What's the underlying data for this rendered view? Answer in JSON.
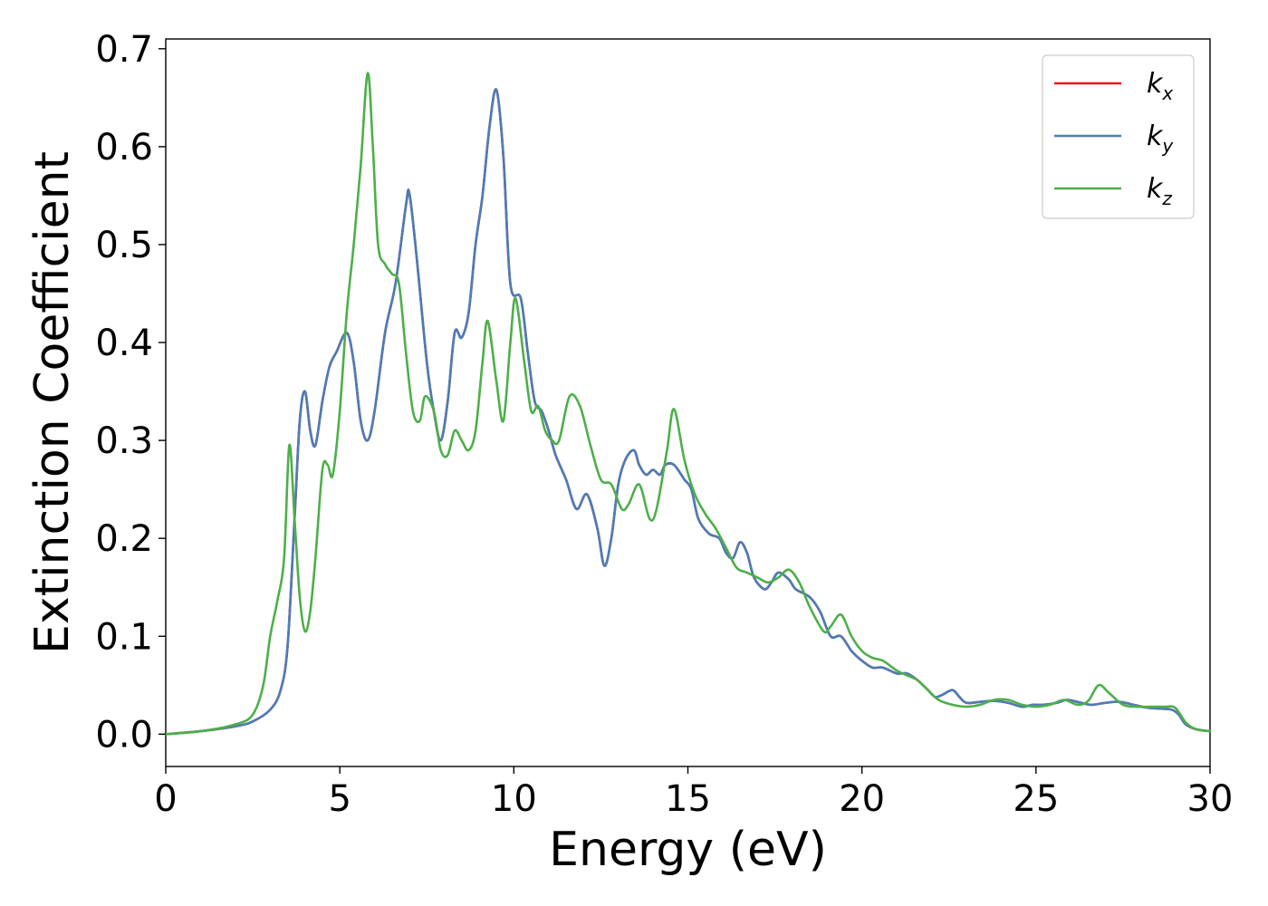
{
  "chart_data": {
    "type": "line",
    "title": "",
    "xlabel": "Energy (eV)",
    "ylabel": "Extinction Coefficient",
    "xlim": [
      0,
      30
    ],
    "ylim": [
      -0.033,
      0.71
    ],
    "xticks": [
      0,
      5,
      10,
      15,
      20,
      25,
      30
    ],
    "xtick_labels": [
      "0",
      "5",
      "10",
      "15",
      "20",
      "25",
      "30"
    ],
    "yticks": [
      0.0,
      0.1,
      0.2,
      0.3,
      0.4,
      0.5,
      0.6,
      0.7
    ],
    "ytick_labels": [
      "0.0",
      "0.1",
      "0.2",
      "0.3",
      "0.4",
      "0.5",
      "0.6",
      "0.7"
    ],
    "grid": false,
    "legend_position": "top-right",
    "series": [
      {
        "name": "k_x",
        "legend_base": "k",
        "legend_sub": "x",
        "color": "#e41a1c",
        "x": [
          0,
          1,
          2,
          2.5,
          3.0,
          3.3,
          3.5,
          3.7,
          3.85,
          4.0,
          4.15,
          4.3,
          4.5,
          4.7,
          4.9,
          5.2,
          5.4,
          5.6,
          5.8,
          6.0,
          6.3,
          6.6,
          6.9,
          7.0,
          7.2,
          7.5,
          7.7,
          7.9,
          8.1,
          8.3,
          8.5,
          8.7,
          8.9,
          9.1,
          9.3,
          9.5,
          9.7,
          9.9,
          10.2,
          10.4,
          10.6,
          10.8,
          11.0,
          11.2,
          11.5,
          11.8,
          12.1,
          12.4,
          12.6,
          12.8,
          13.0,
          13.2,
          13.45,
          13.6,
          13.8,
          14.0,
          14.2,
          14.35,
          14.6,
          14.9,
          15.1,
          15.3,
          15.6,
          15.9,
          16.1,
          16.3,
          16.5,
          16.7,
          16.9,
          17.2,
          17.4,
          17.6,
          17.9,
          18.1,
          18.5,
          18.8,
          19.1,
          19.4,
          19.7,
          20.0,
          20.3,
          20.6,
          21.0,
          21.3,
          21.6,
          21.9,
          22.1,
          22.3,
          22.6,
          22.8,
          23.0,
          23.4,
          23.8,
          24.2,
          24.6,
          24.9,
          25.2,
          25.6,
          25.9,
          26.3,
          26.6,
          27.0,
          27.4,
          27.8,
          28.2,
          28.6,
          28.9,
          29.1,
          29.3,
          29.6,
          30.0
        ],
        "y": [
          0.0,
          0.003,
          0.008,
          0.013,
          0.025,
          0.045,
          0.09,
          0.22,
          0.32,
          0.35,
          0.31,
          0.295,
          0.34,
          0.375,
          0.39,
          0.41,
          0.38,
          0.32,
          0.3,
          0.33,
          0.41,
          0.46,
          0.54,
          0.552,
          0.49,
          0.38,
          0.33,
          0.3,
          0.34,
          0.41,
          0.405,
          0.43,
          0.5,
          0.55,
          0.62,
          0.658,
          0.59,
          0.46,
          0.445,
          0.39,
          0.34,
          0.33,
          0.31,
          0.285,
          0.26,
          0.23,
          0.245,
          0.21,
          0.172,
          0.2,
          0.255,
          0.28,
          0.29,
          0.275,
          0.265,
          0.27,
          0.265,
          0.275,
          0.275,
          0.26,
          0.25,
          0.22,
          0.205,
          0.2,
          0.185,
          0.18,
          0.196,
          0.185,
          0.16,
          0.148,
          0.155,
          0.165,
          0.158,
          0.148,
          0.14,
          0.125,
          0.1,
          0.1,
          0.085,
          0.075,
          0.068,
          0.068,
          0.062,
          0.062,
          0.055,
          0.045,
          0.038,
          0.04,
          0.045,
          0.038,
          0.032,
          0.033,
          0.034,
          0.032,
          0.028,
          0.03,
          0.03,
          0.032,
          0.035,
          0.032,
          0.03,
          0.032,
          0.033,
          0.03,
          0.027,
          0.026,
          0.025,
          0.02,
          0.01,
          0.005,
          0.003
        ]
      },
      {
        "name": "k_y",
        "legend_base": "k",
        "legend_sub": "y",
        "color": "#4a7db8",
        "x": [
          0,
          1,
          2,
          2.5,
          3.0,
          3.3,
          3.5,
          3.7,
          3.85,
          4.0,
          4.15,
          4.3,
          4.5,
          4.7,
          4.9,
          5.2,
          5.4,
          5.6,
          5.8,
          6.0,
          6.3,
          6.6,
          6.9,
          7.0,
          7.2,
          7.5,
          7.7,
          7.9,
          8.1,
          8.3,
          8.5,
          8.7,
          8.9,
          9.1,
          9.3,
          9.5,
          9.7,
          9.9,
          10.2,
          10.4,
          10.6,
          10.8,
          11.0,
          11.2,
          11.5,
          11.8,
          12.1,
          12.4,
          12.6,
          12.8,
          13.0,
          13.2,
          13.45,
          13.6,
          13.8,
          14.0,
          14.2,
          14.35,
          14.6,
          14.9,
          15.1,
          15.3,
          15.6,
          15.9,
          16.1,
          16.3,
          16.5,
          16.7,
          16.9,
          17.2,
          17.4,
          17.6,
          17.9,
          18.1,
          18.5,
          18.8,
          19.1,
          19.4,
          19.7,
          20.0,
          20.3,
          20.6,
          21.0,
          21.3,
          21.6,
          21.9,
          22.1,
          22.3,
          22.6,
          22.8,
          23.0,
          23.4,
          23.8,
          24.2,
          24.6,
          24.9,
          25.2,
          25.6,
          25.9,
          26.3,
          26.6,
          27.0,
          27.4,
          27.8,
          28.2,
          28.6,
          28.9,
          29.1,
          29.3,
          29.6,
          30.0
        ],
        "y": [
          0.0,
          0.003,
          0.008,
          0.013,
          0.025,
          0.045,
          0.09,
          0.22,
          0.32,
          0.35,
          0.31,
          0.295,
          0.34,
          0.375,
          0.39,
          0.41,
          0.38,
          0.32,
          0.3,
          0.33,
          0.41,
          0.46,
          0.54,
          0.552,
          0.49,
          0.38,
          0.33,
          0.3,
          0.34,
          0.41,
          0.405,
          0.43,
          0.5,
          0.55,
          0.62,
          0.658,
          0.59,
          0.46,
          0.445,
          0.39,
          0.34,
          0.33,
          0.31,
          0.285,
          0.26,
          0.23,
          0.245,
          0.21,
          0.172,
          0.2,
          0.255,
          0.28,
          0.29,
          0.275,
          0.265,
          0.27,
          0.265,
          0.275,
          0.275,
          0.26,
          0.25,
          0.22,
          0.205,
          0.2,
          0.185,
          0.18,
          0.196,
          0.185,
          0.16,
          0.148,
          0.155,
          0.165,
          0.158,
          0.148,
          0.14,
          0.125,
          0.1,
          0.1,
          0.085,
          0.075,
          0.068,
          0.068,
          0.062,
          0.062,
          0.055,
          0.045,
          0.038,
          0.04,
          0.045,
          0.038,
          0.032,
          0.033,
          0.034,
          0.032,
          0.028,
          0.03,
          0.03,
          0.032,
          0.035,
          0.032,
          0.03,
          0.032,
          0.033,
          0.03,
          0.027,
          0.026,
          0.025,
          0.02,
          0.01,
          0.005,
          0.003
        ]
      },
      {
        "name": "k_z",
        "legend_base": "k",
        "legend_sub": "z",
        "color": "#4daf4a",
        "x": [
          0,
          1,
          2,
          2.5,
          2.8,
          3.0,
          3.2,
          3.4,
          3.55,
          3.7,
          3.85,
          4.0,
          4.15,
          4.3,
          4.5,
          4.65,
          4.8,
          5.0,
          5.2,
          5.4,
          5.6,
          5.8,
          5.95,
          6.1,
          6.3,
          6.5,
          6.7,
          6.9,
          7.1,
          7.3,
          7.45,
          7.7,
          7.9,
          8.1,
          8.3,
          8.5,
          8.7,
          8.9,
          9.1,
          9.25,
          9.5,
          9.7,
          9.9,
          10.05,
          10.3,
          10.5,
          10.7,
          10.9,
          11.1,
          11.3,
          11.6,
          11.9,
          12.2,
          12.5,
          12.8,
          13.1,
          13.3,
          13.6,
          13.9,
          14.1,
          14.4,
          14.6,
          14.9,
          15.2,
          15.5,
          15.8,
          16.1,
          16.4,
          16.7,
          17.0,
          17.3,
          17.6,
          17.9,
          18.2,
          18.5,
          18.9,
          19.1,
          19.4,
          19.7,
          20.0,
          20.3,
          20.6,
          21.0,
          21.3,
          21.6,
          21.9,
          22.2,
          22.6,
          23.0,
          23.4,
          23.8,
          24.2,
          24.6,
          25.0,
          25.4,
          25.8,
          26.2,
          26.5,
          26.8,
          27.1,
          27.5,
          27.9,
          28.3,
          28.7,
          29.0,
          29.3,
          29.6,
          30.0
        ],
        "y": [
          0.0,
          0.003,
          0.01,
          0.02,
          0.05,
          0.1,
          0.135,
          0.18,
          0.295,
          0.22,
          0.14,
          0.105,
          0.125,
          0.18,
          0.27,
          0.275,
          0.265,
          0.33,
          0.43,
          0.5,
          0.58,
          0.675,
          0.6,
          0.5,
          0.48,
          0.47,
          0.46,
          0.39,
          0.33,
          0.32,
          0.345,
          0.33,
          0.29,
          0.285,
          0.31,
          0.3,
          0.29,
          0.31,
          0.38,
          0.422,
          0.36,
          0.32,
          0.4,
          0.445,
          0.38,
          0.33,
          0.335,
          0.31,
          0.3,
          0.3,
          0.345,
          0.335,
          0.295,
          0.26,
          0.255,
          0.23,
          0.235,
          0.255,
          0.22,
          0.23,
          0.29,
          0.332,
          0.28,
          0.245,
          0.225,
          0.21,
          0.19,
          0.17,
          0.165,
          0.16,
          0.155,
          0.16,
          0.168,
          0.155,
          0.13,
          0.105,
          0.11,
          0.122,
          0.1,
          0.085,
          0.078,
          0.075,
          0.065,
          0.06,
          0.055,
          0.045,
          0.035,
          0.03,
          0.028,
          0.03,
          0.035,
          0.035,
          0.03,
          0.028,
          0.03,
          0.035,
          0.03,
          0.034,
          0.05,
          0.042,
          0.03,
          0.028,
          0.028,
          0.028,
          0.027,
          0.012,
          0.005,
          0.003
        ]
      }
    ]
  }
}
